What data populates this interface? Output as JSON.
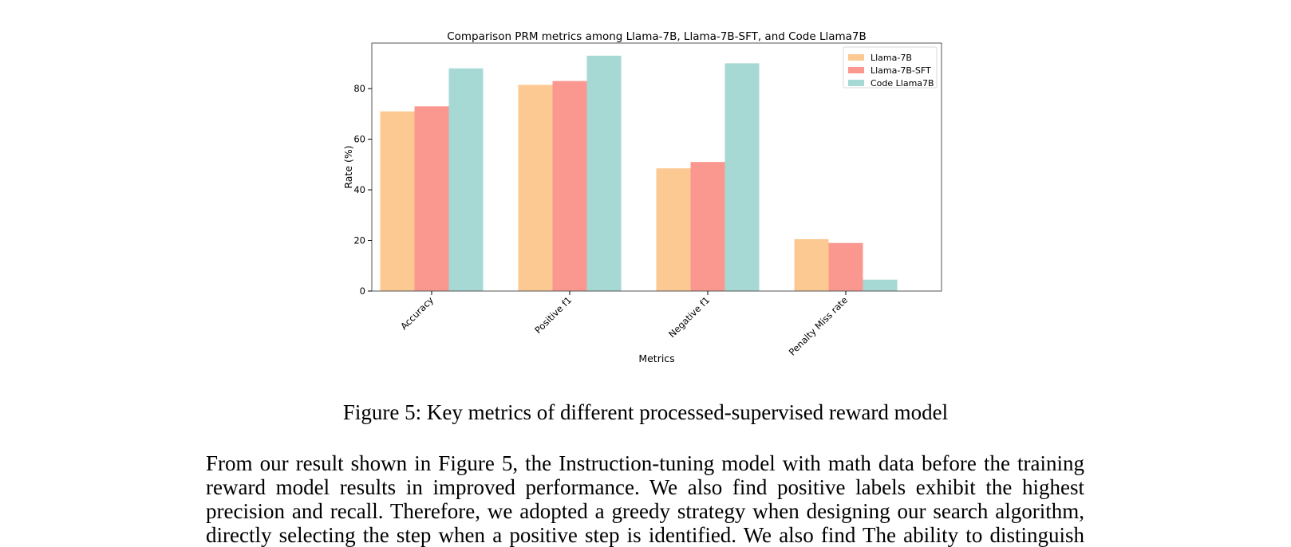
{
  "chart_data": {
    "type": "bar",
    "title": "Comparison PRM metrics among Llama-7B, Llama-7B-SFT, and Code Llama7B",
    "xlabel": "Metrics",
    "ylabel": "Rate (%)",
    "ylim": [
      0,
      98
    ],
    "yticks": [
      0,
      20,
      40,
      60,
      80
    ],
    "categories": [
      "Accuracy",
      "Positive f1",
      "Negative f1",
      "Penalty Miss rate"
    ],
    "series": [
      {
        "name": "Llama-7B",
        "color": "#fdc993",
        "values": [
          71,
          81.5,
          48.5,
          20.5
        ]
      },
      {
        "name": "Llama-7B-SFT",
        "color": "#fa9890",
        "values": [
          73,
          83,
          51,
          19
        ]
      },
      {
        "name": "Code Llama7B",
        "color": "#a6d9d4",
        "values": [
          88,
          93,
          90,
          4.5
        ]
      }
    ],
    "legend": "top-right",
    "grid": false
  },
  "caption": "Figure 5: Key metrics of different processed-supervised reward model",
  "body_lines": [
    "From our result shown in Figure 5, the Instruction-tuning model with math data before the training",
    "reward model results in improved performance.  We also find positive labels exhibit the highest",
    "precision and recall. Therefore, we adopted a greedy strategy when designing our search algorithm,",
    "directly selecting the step when a positive step is identified. We also find The ability to distinguish"
  ]
}
